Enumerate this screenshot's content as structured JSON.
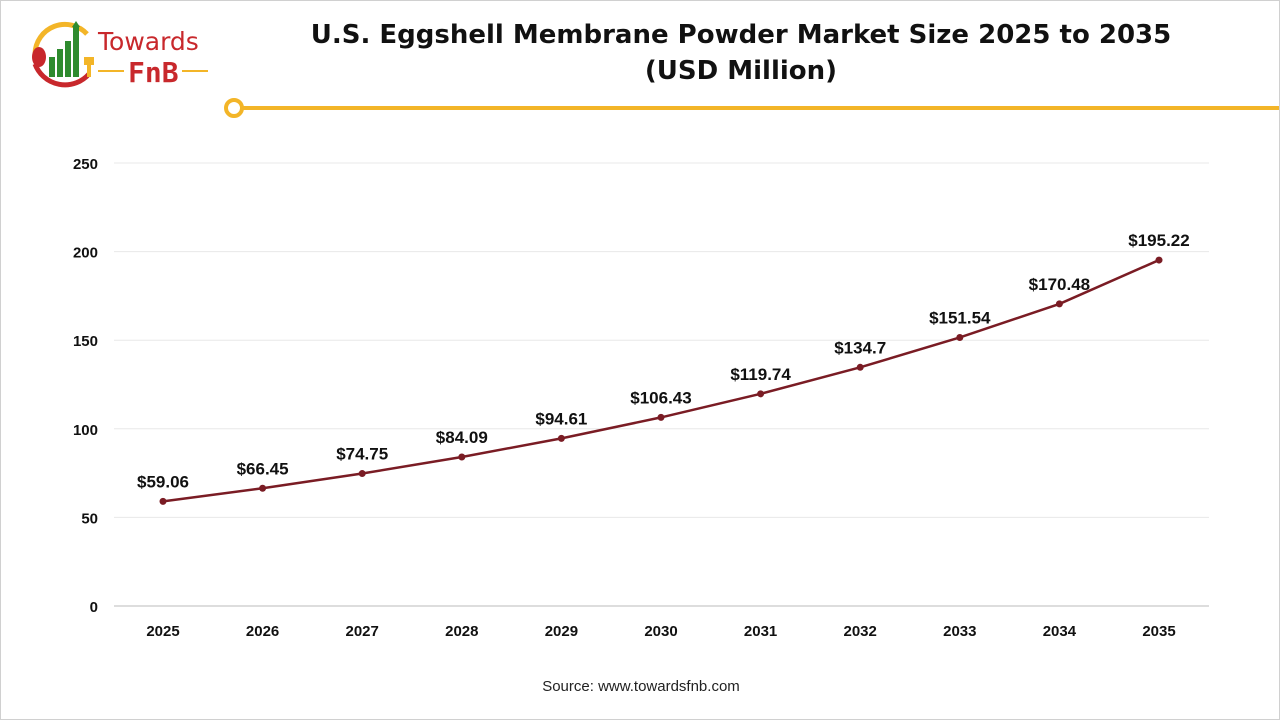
{
  "logo": {
    "line1": "Towards",
    "line2": "FnB"
  },
  "colors": {
    "line": "#7a1c24",
    "accent": "#f3b528",
    "brand_red": "#c8282c",
    "brand_green": "#2e8b2e"
  },
  "chart_data": {
    "type": "line",
    "title": "U.S. Eggshell Membrane Powder Market Size 2025 to 2035 (USD Million)",
    "title_lines": [
      "U.S. Eggshell Membrane Powder Market Size 2025 to 2035",
      "(USD Million)"
    ],
    "categories": [
      "2025",
      "2026",
      "2027",
      "2028",
      "2029",
      "2030",
      "2031",
      "2032",
      "2033",
      "2034",
      "2035"
    ],
    "values": [
      59.06,
      66.45,
      74.75,
      84.09,
      94.61,
      106.43,
      119.74,
      134.7,
      151.54,
      170.48,
      195.22
    ],
    "data_labels": [
      "$59.06",
      "$66.45",
      "$74.75",
      "$84.09",
      "$94.61",
      "$106.43",
      "$119.74",
      "$134.7",
      "$151.54",
      "$170.48",
      "$195.22"
    ],
    "yticks": [
      0,
      50,
      100,
      150,
      200,
      250
    ],
    "ylim": [
      0,
      250
    ],
    "grid": true,
    "xlabel": "",
    "ylabel": ""
  },
  "source": "Source: www.towardsfnb.com"
}
